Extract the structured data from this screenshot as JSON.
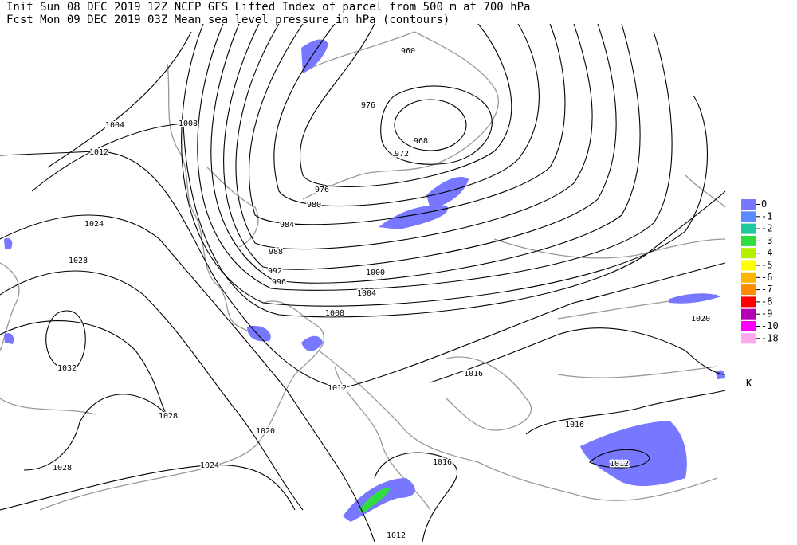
{
  "header": {
    "line1": "Init  Sun 08 DEC 2019 12Z  NCEP GFS Lifted Index of parcel from 500 m at 700 hPa",
    "line2": "Fcst Mon 09 DEC 2019 03Z  Mean sea level pressure in hPa (contours)"
  },
  "contour_labels": [
    "960",
    "976",
    "968",
    "972",
    "976",
    "980",
    "984",
    "988",
    "992",
    "996",
    "1000",
    "1004",
    "1008",
    "1012",
    "1016",
    "1016",
    "1016",
    "1012",
    "1020",
    "1020",
    "1024",
    "1028",
    "1028",
    "1032",
    "1028",
    "1024",
    "1012",
    "1008",
    "1004",
    "1012"
  ],
  "legend": {
    "labels": [
      "0",
      "-1",
      "-2",
      "-3",
      "-4",
      "-5",
      "-6",
      "-7",
      "-8",
      "-9",
      "-10",
      "-18"
    ],
    "colors": [
      "#7777ff",
      "#5a8cff",
      "#20c8a0",
      "#30dc40",
      "#b4f000",
      "#ffff00",
      "#ffb400",
      "#ff8c00",
      "#ff0000",
      "#b400b4",
      "#ff00ff",
      "#ffaaf0"
    ],
    "unit": "K"
  }
}
